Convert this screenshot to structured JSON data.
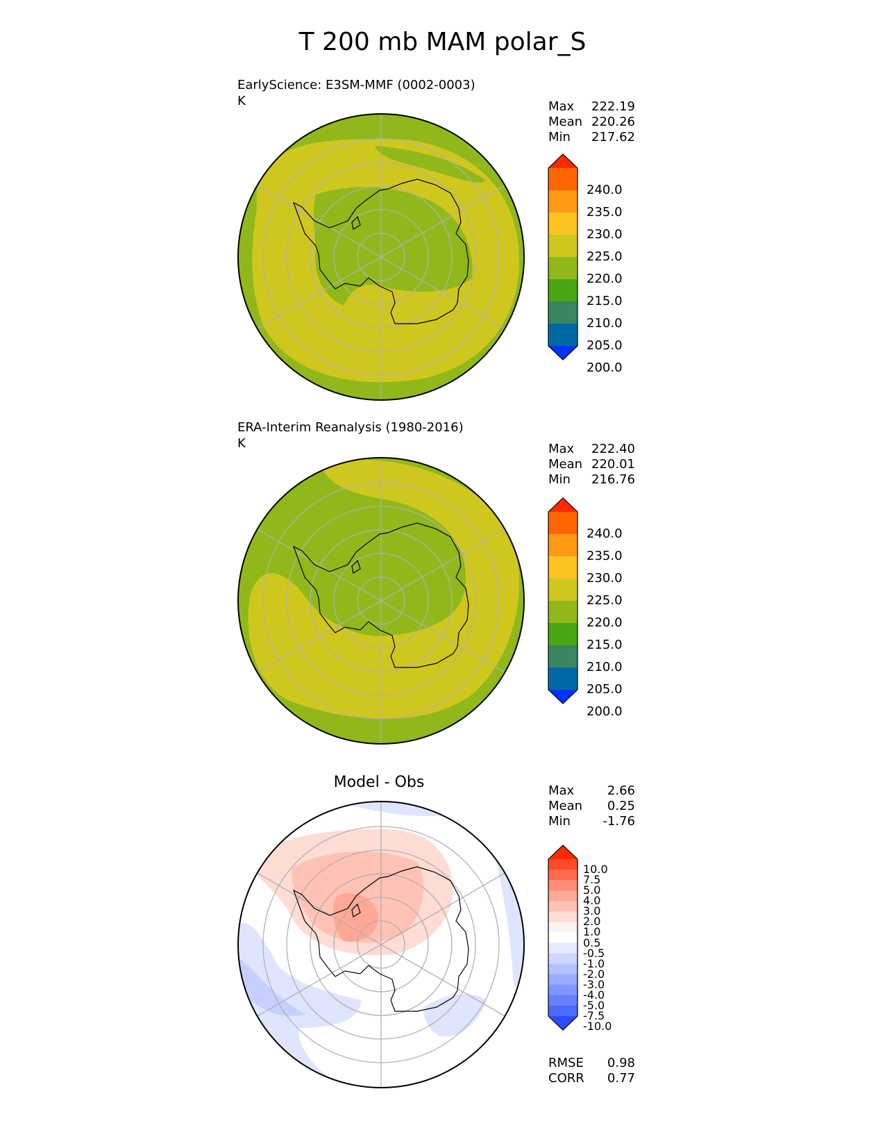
{
  "title": "T 200 mb MAM polar_S",
  "panels": [
    {
      "title": "EarlyScience: E3SM-MMF (0002-0003)",
      "units": "K",
      "stats": [
        {
          "label": "Max",
          "value": "222.19"
        },
        {
          "label": "Mean",
          "value": "220.26"
        },
        {
          "label": "Min",
          "value": "217.62"
        }
      ]
    },
    {
      "title": "ERA-Interim Reanalysis (1980-2016)",
      "units": "K",
      "stats": [
        {
          "label": "Max",
          "value": "222.40"
        },
        {
          "label": "Mean",
          "value": "220.01"
        },
        {
          "label": "Min",
          "value": "216.76"
        }
      ]
    },
    {
      "title": "Model - Obs",
      "units": "",
      "stats": [
        {
          "label": "Max",
          "value": "2.66"
        },
        {
          "label": "Mean",
          "value": "0.25"
        },
        {
          "label": "Min",
          "value": "-1.76"
        }
      ],
      "metrics": [
        {
          "label": "RMSE",
          "value": "0.98"
        },
        {
          "label": "CORR",
          "value": "0.77"
        }
      ]
    }
  ],
  "colorbar_main": {
    "labels": [
      "240.0",
      "235.0",
      "230.0",
      "225.0",
      "220.0",
      "215.0",
      "210.0",
      "205.0",
      "200.0"
    ],
    "colors": [
      "#ff2a00",
      "#ff6600",
      "#ff9a14",
      "#fcc41f",
      "#d0c71e",
      "#91b81a",
      "#4aa513",
      "#3a8663",
      "#0068a5",
      "#0033ff"
    ]
  },
  "colorbar_diff": {
    "labels": [
      "10.0",
      "7.5",
      "5.0",
      "4.0",
      "3.0",
      "2.0",
      "1.0",
      "0.5",
      "-0.5",
      "-1.0",
      "-2.0",
      "-3.0",
      "-4.0",
      "-5.0",
      "-7.5",
      "-10.0"
    ],
    "colors": [
      "#ff2a00",
      "#ff4a2a",
      "#ff6a50",
      "#ff8c74",
      "#ffa895",
      "#ffc2b4",
      "#ffdcd4",
      "#fdf4f2",
      "#ffffff",
      "#e6ebff",
      "#cdd6ff",
      "#b3c1ff",
      "#9aabff",
      "#8096ff",
      "#6680ff",
      "#4d6bff",
      "#2e4cff"
    ]
  }
}
